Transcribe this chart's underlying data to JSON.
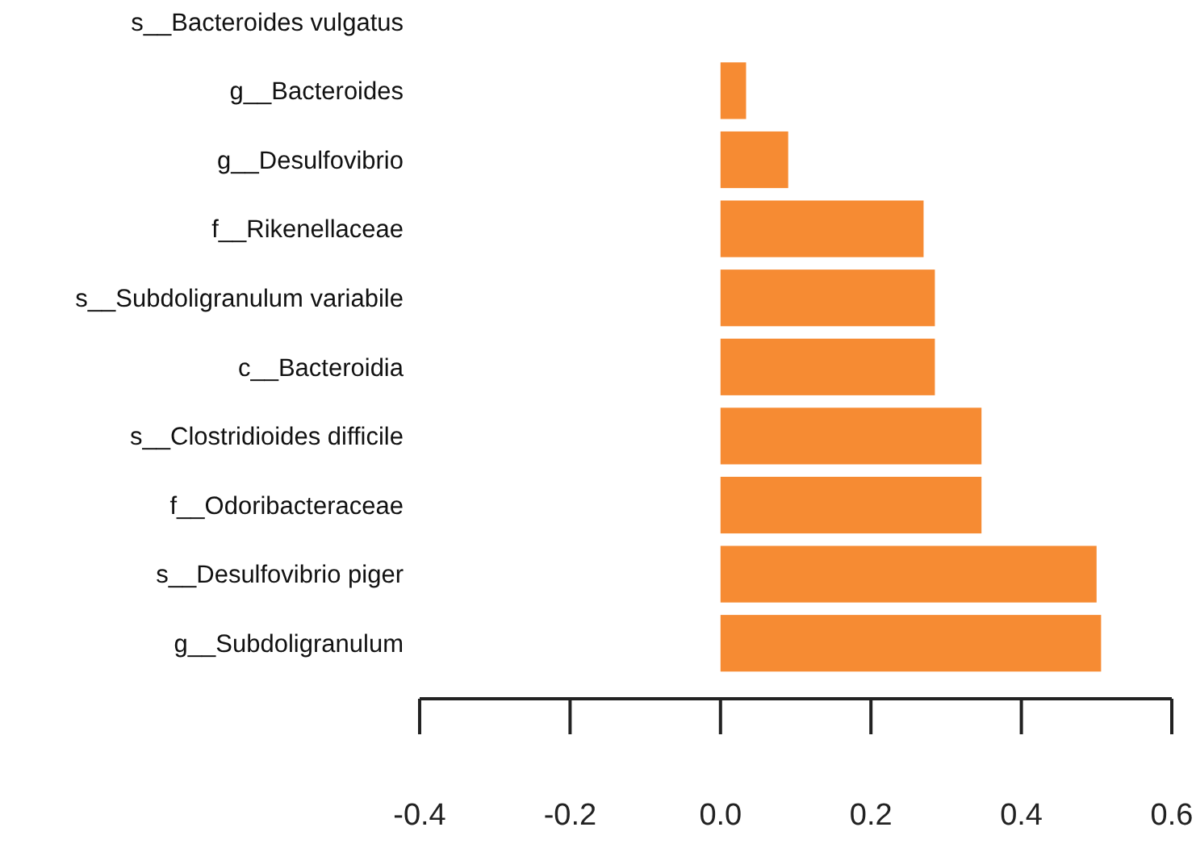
{
  "chart_data": {
    "type": "bar",
    "orientation": "horizontal",
    "categories": [
      "s__Bacteroides vulgatus",
      "g__Bacteroides",
      "g__Desulfovibrio",
      "f__Rikenellaceae",
      "s__Subdoligranulum variabile",
      "c__Bacteroidia",
      "s__Clostridioides difficile",
      "f__Odoribacteraceae",
      "s__Desulfovibrio piger",
      "g__Subdoligranulum"
    ],
    "values": [
      0,
      0.034,
      0.09,
      0.27,
      0.285,
      0.285,
      0.347,
      0.347,
      0.5,
      0.506
    ],
    "color": "#f68b33",
    "xlim": [
      -0.4,
      0.6
    ],
    "xticks": [
      {
        "value": -0.4,
        "label": "-0.4"
      },
      {
        "value": -0.2,
        "label": "-0.2"
      },
      {
        "value": 0,
        "label": "0.0"
      },
      {
        "value": 0.2,
        "label": "0.2"
      },
      {
        "value": 0.4,
        "label": "0.4"
      },
      {
        "value": 0.6,
        "label": "0.6"
      }
    ],
    "grid": false
  }
}
